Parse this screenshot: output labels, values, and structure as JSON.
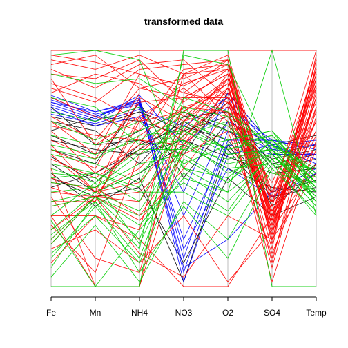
{
  "chart_data": {
    "type": "parallel-coordinates",
    "title": "transformed data",
    "variables": [
      "Fe",
      "Mn",
      "NH4",
      "NO3",
      "O2",
      "SO4",
      "Temp"
    ],
    "ylim": [
      0,
      1
    ],
    "grid": false,
    "series": [
      {
        "color": "#000000",
        "lines": [
          [
            0.62,
            0.58,
            0.56,
            0.62,
            0.55,
            0.48,
            0.5
          ],
          [
            0.55,
            0.44,
            0.6,
            0.68,
            0.62,
            0.4,
            0.45
          ],
          [
            0.7,
            0.66,
            0.52,
            0.72,
            0.74,
            0.52,
            0.56
          ],
          [
            0.48,
            0.34,
            0.46,
            0.02,
            0.6,
            0.38,
            0.42
          ],
          [
            0.66,
            0.72,
            0.7,
            0.64,
            0.78,
            0.56,
            0.6
          ],
          [
            0.58,
            0.52,
            0.78,
            0.46,
            0.7,
            0.34,
            0.48
          ],
          [
            0.42,
            0.48,
            0.58,
            0.7,
            0.58,
            0.36,
            0.52
          ],
          [
            0.76,
            0.6,
            0.62,
            0.56,
            0.82,
            0.6,
            0.64
          ],
          [
            0.52,
            0.4,
            0.48,
            0.6,
            0.5,
            0.42,
            0.4
          ],
          [
            0.64,
            0.56,
            0.66,
            0.74,
            0.66,
            0.54,
            0.58
          ],
          [
            0.46,
            0.38,
            0.42,
            0.1,
            0.46,
            0.3,
            0.38
          ],
          [
            0.72,
            0.68,
            0.74,
            0.66,
            0.72,
            0.5,
            0.54
          ]
        ]
      },
      {
        "color": "#0000ff",
        "lines": [
          [
            0.78,
            0.74,
            0.79,
            0.02,
            0.56,
            0.6,
            0.54
          ],
          [
            0.8,
            0.72,
            0.78,
            0.06,
            0.62,
            0.62,
            0.58
          ],
          [
            0.76,
            0.7,
            0.8,
            0.12,
            0.66,
            0.58,
            0.6
          ],
          [
            0.74,
            0.7,
            0.76,
            0.2,
            0.6,
            0.56,
            0.56
          ],
          [
            0.79,
            0.73,
            0.77,
            0.3,
            0.7,
            0.6,
            0.52
          ],
          [
            0.77,
            0.71,
            0.81,
            0.6,
            0.76,
            0.62,
            0.6
          ],
          [
            0.73,
            0.69,
            0.75,
            0.68,
            0.8,
            0.58,
            0.56
          ],
          [
            0.81,
            0.74,
            0.78,
            0.08,
            0.2,
            0.4,
            0.5
          ],
          [
            0.75,
            0.68,
            0.72,
            0.4,
            0.82,
            0.6,
            0.62
          ],
          [
            0.78,
            0.72,
            0.79,
            0.16,
            0.5,
            0.38,
            0.48
          ]
        ]
      },
      {
        "color": "#ff0000",
        "lines": [
          [
            1.0,
            1.0,
            1.0,
            1.0,
            1.0,
            1.0,
            1.0
          ],
          [
            0.98,
            0.95,
            0.9,
            0.85,
            0.94,
            0.3,
            0.92
          ],
          [
            0.94,
            0.98,
            0.84,
            0.8,
            0.9,
            0.2,
            0.86
          ],
          [
            0.9,
            0.88,
            0.96,
            0.78,
            0.92,
            0.34,
            0.9
          ],
          [
            0.86,
            0.8,
            0.7,
            0.74,
            0.88,
            0.28,
            0.8
          ],
          [
            0.82,
            0.9,
            0.86,
            0.72,
            0.86,
            0.1,
            0.84
          ],
          [
            0.6,
            0.4,
            0.8,
            0.7,
            0.84,
            0.24,
            0.88
          ],
          [
            0.5,
            0.0,
            0.0,
            0.8,
            0.8,
            0.36,
            0.7
          ],
          [
            0.4,
            0.38,
            0.64,
            0.76,
            0.82,
            0.22,
            0.82
          ],
          [
            0.3,
            0.0,
            0.0,
            0.6,
            0.78,
            0.26,
            0.76
          ],
          [
            0.7,
            0.56,
            0.9,
            0.82,
            0.96,
            0.18,
            0.94
          ],
          [
            0.2,
            0.38,
            0.28,
            0.5,
            0.74,
            0.32,
            0.66
          ],
          [
            0.1,
            0.3,
            0.2,
            0.0,
            0.0,
            0.3,
            0.6
          ],
          [
            0.88,
            0.6,
            0.72,
            0.62,
            0.88,
            0.4,
            0.78
          ],
          [
            0.66,
            0.48,
            0.6,
            0.9,
            0.92,
            0.26,
            0.92
          ],
          [
            0.56,
            0.4,
            0.44,
            0.66,
            0.9,
            0.3,
            0.96
          ],
          [
            0.36,
            0.36,
            0.72,
            0.84,
            0.7,
            0.12,
            0.72
          ],
          [
            0.92,
            0.84,
            0.94,
            0.96,
            0.8,
            0.16,
            0.98
          ],
          [
            0.26,
            0.06,
            0.56,
            0.74,
            0.86,
            0.2,
            0.8
          ],
          [
            0.46,
            0.4,
            0.5,
            0.7,
            0.76,
            0.02,
            0.62
          ],
          [
            0.72,
            0.62,
            0.84,
            0.88,
            0.96,
            0.34,
            0.86
          ],
          [
            0.34,
            0.38,
            0.4,
            0.58,
            0.84,
            0.28,
            0.74
          ],
          [
            0.16,
            0.24,
            0.1,
            0.3,
            0.02,
            0.24,
            0.52
          ],
          [
            0.8,
            0.72,
            0.66,
            0.92,
            0.94,
            0.38,
            1.0
          ],
          [
            0.44,
            0.42,
            0.3,
            0.56,
            0.66,
            0.14,
            0.58
          ],
          [
            0.62,
            0.54,
            0.78,
            0.8,
            0.9,
            0.22,
            0.9
          ],
          [
            0.24,
            0.38,
            0.36,
            0.64,
            0.8,
            0.3,
            0.7
          ],
          [
            0.96,
            0.92,
            0.98,
            0.9,
            0.72,
            0.44,
            0.84
          ],
          [
            0.38,
            0.12,
            0.06,
            0.7,
            0.88,
            0.26,
            0.64
          ],
          [
            0.54,
            0.46,
            0.58,
            0.76,
            0.74,
            0.08,
            0.76
          ],
          [
            0.3,
            0.3,
            0.24,
            0.9,
            0.98,
            0.36,
            0.88
          ],
          [
            0.68,
            0.64,
            0.62,
            0.6,
            0.84,
            0.32,
            0.66
          ],
          [
            0.42,
            0.36,
            0.7,
            0.86,
            0.92,
            0.4,
            0.92
          ],
          [
            0.18,
            0.38,
            0.14,
            0.04,
            0.3,
            0.2,
            0.48
          ],
          [
            0.58,
            0.5,
            0.82,
            0.82,
            0.78,
            0.24,
            0.8
          ],
          [
            0.84,
            0.78,
            0.92,
            0.94,
            0.96,
            0.28,
            0.96
          ]
        ]
      },
      {
        "color": "#00cd00",
        "lines": [
          [
            0.0,
            0.0,
            0.0,
            1.0,
            1.0,
            0.0,
            0.0
          ],
          [
            0.98,
            1.0,
            0.96,
            0.5,
            0.4,
            1.0,
            0.3
          ],
          [
            0.14,
            0.3,
            0.1,
            0.54,
            0.44,
            0.6,
            0.36
          ],
          [
            0.2,
            0.38,
            0.26,
            0.48,
            0.36,
            0.56,
            0.38
          ],
          [
            0.36,
            0.4,
            0.32,
            0.6,
            0.5,
            0.52,
            0.4
          ],
          [
            0.44,
            0.42,
            0.56,
            0.66,
            0.58,
            0.62,
            0.44
          ],
          [
            0.52,
            0.48,
            0.4,
            0.4,
            0.3,
            0.54,
            0.34
          ],
          [
            0.3,
            0.44,
            0.18,
            0.58,
            0.54,
            0.58,
            0.42
          ],
          [
            0.6,
            0.56,
            0.62,
            0.72,
            0.66,
            0.6,
            0.5
          ],
          [
            0.08,
            0.36,
            0.06,
            0.34,
            0.12,
            0.5,
            0.32
          ],
          [
            0.7,
            0.62,
            0.7,
            0.52,
            0.6,
            0.64,
            0.46
          ],
          [
            0.24,
            0.4,
            0.48,
            0.64,
            0.7,
            0.48,
            0.44
          ],
          [
            0.48,
            0.46,
            0.36,
            0.7,
            0.62,
            0.66,
            0.4
          ],
          [
            0.9,
            0.86,
            0.88,
            0.76,
            0.56,
            0.58,
            0.38
          ],
          [
            0.12,
            0.34,
            0.12,
            0.62,
            0.48,
            0.56,
            0.36
          ],
          [
            0.4,
            0.42,
            0.52,
            0.56,
            0.44,
            0.62,
            0.42
          ],
          [
            0.56,
            0.52,
            0.44,
            0.8,
            0.74,
            0.6,
            0.48
          ],
          [
            0.28,
            0.0,
            0.24,
            0.46,
            0.4,
            0.54,
            0.34
          ],
          [
            0.64,
            0.6,
            0.66,
            0.74,
            0.68,
            0.52,
            0.5
          ],
          [
            0.34,
            0.38,
            0.2,
            0.68,
            0.58,
            0.64,
            0.44
          ],
          [
            0.8,
            0.76,
            0.6,
            0.62,
            0.52,
            0.56,
            0.4
          ],
          [
            0.18,
            0.38,
            0.3,
            0.44,
            0.32,
            0.58,
            0.36
          ],
          [
            0.5,
            0.44,
            0.58,
            0.58,
            0.62,
            0.66,
            0.46
          ],
          [
            0.04,
            0.26,
            0.02,
            0.36,
            0.2,
            0.52,
            0.3
          ],
          [
            0.46,
            0.48,
            0.42,
            0.76,
            0.72,
            0.6,
            0.44
          ],
          [
            0.74,
            0.7,
            0.76,
            0.5,
            0.46,
            0.62,
            0.48
          ],
          [
            0.22,
            0.36,
            0.16,
            0.98,
            0.94,
            0.56,
            0.38
          ],
          [
            0.58,
            0.54,
            0.64,
            0.66,
            0.56,
            0.58,
            0.42
          ]
        ]
      }
    ]
  }
}
